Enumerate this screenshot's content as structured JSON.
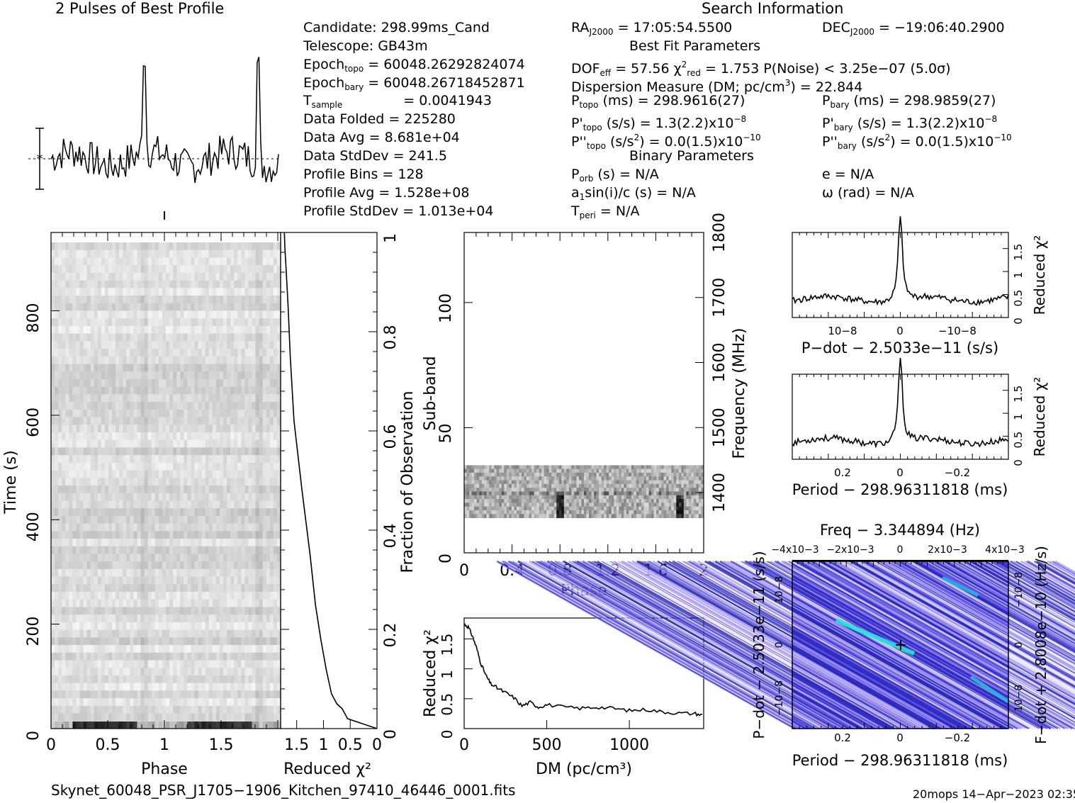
{
  "header": {
    "profile_title": "2 Pulses of Best Profile",
    "search_title": "Search Information",
    "best_fit_title": "Best Fit Parameters",
    "binary_title": "Binary Parameters"
  },
  "info": {
    "candidate": "Candidate:  298.99ms_Cand",
    "telescope": "Telescope:  GB43m",
    "epoch_topo_label": "Epoch",
    "epoch_topo_sub": "topo",
    "epoch_topo_val": "= 60048.26292824074",
    "epoch_bary_label": "Epoch",
    "epoch_bary_sub": "bary",
    "epoch_bary_val": "= 60048.26718452871",
    "tsample_label": "T",
    "tsample_sub": "sample",
    "tsample_val": "=   0.0041943",
    "data_folded": "Data Folded      =   225280",
    "data_avg": "Data Avg          =   8.681e+04",
    "data_stddev": "Data StdDev     =   241.5",
    "profile_bins": "Profile Bins     =   128",
    "profile_avg": "Profile Avg      =   1.528e+08",
    "profile_stddev": "Profile StdDev  =   1.013e+04"
  },
  "search": {
    "ra_label": "RA",
    "ra_sub": "J2000",
    "ra_val": "= 17:05:54.5500",
    "dec_label": "DEC",
    "dec_sub": "J2000",
    "dec_val": "= −19:06:40.2900",
    "dof_label": "DOF",
    "dof_sub": "eff",
    "dof_val": "= 57.56  χ",
    "chi_sup": "2",
    "chi_sub": "red",
    "chi_val": "= 1.753  P(Noise) < 3.25e−07   (5.0σ)",
    "dm_line_a": "Dispersion Measure (DM; pc/cm",
    "dm_sup": "3",
    "dm_line_b": ") = 22.844",
    "ptopo_label": "P",
    "ptopo_sub": "topo",
    "ptopo_val": " (ms)  =   298.9616(27)",
    "pbary_label": "P",
    "pbary_sub": "bary",
    "pbary_val": " (ms)  =   298.9859(27)",
    "pdtopo_label": "P'",
    "pdtopo_sub": "topo",
    "pdtopo_val": " (s/s)  =   1.3(2.2)x10",
    "pdtopo_exp": "−8",
    "pdbary_label": "P'",
    "pdbary_sub": "bary",
    "pdbary_val": " (s/s)  =   1.3(2.2)x10",
    "pdbary_exp": "−8",
    "pddtopo_label": "P''",
    "pddtopo_sub": "topo",
    "pddtopo_val": " (s/s",
    "pddtopo_sup": "2",
    "pddtopo_val2": ") = 0.0(1.5)x10",
    "pddtopo_exp": "−10",
    "pddbary_label": "P''",
    "pddbary_sub": "bary",
    "pddbary_val": " (s/s",
    "pddbary_sup": "2",
    "pddbary_val2": ") = 0.0(1.5)x10",
    "pddbary_exp": "−10",
    "porb_label": "P",
    "porb_sub": "orb",
    "porb_val": " (s) = N/A",
    "e_val": "e = N/A",
    "a1_label": "a",
    "a1_sub": "1",
    "a1_val": "sin(i)/c (s) = N/A",
    "omega_val": "ω (rad) = N/A",
    "tperi_label": "T",
    "tperi_sub": "peri",
    "tperi_val": " = N/A"
  },
  "footer": {
    "filename": "Skynet_60048_PSR_J1705−1906_Kitchen_97410_46446_0001.fits",
    "stamp": "20mops 14−Apr−2023 02:35"
  },
  "chart_data": [
    {
      "type": "line",
      "title": "2 Pulses of Best Profile",
      "xlabel": "",
      "ylabel": "",
      "xlim": [
        0,
        2
      ],
      "peaks_at_phase": [
        0.82,
        1.82
      ],
      "pulse_peak_relative": 1.0,
      "baseline_relative": 0.0
    },
    {
      "type": "heatmap",
      "xlabel": "Phase",
      "ylabel": "Time (s)",
      "xlim": [
        0,
        2
      ],
      "ylim": [
        0,
        950
      ],
      "x_ticks": [
        "0",
        "0.5",
        "1",
        "1.5"
      ],
      "y_ticks": [
        "0",
        "200",
        "400",
        "600",
        "800"
      ]
    },
    {
      "type": "line",
      "xlabel": "Reduced χ²",
      "ylabel": "Fraction of Observation",
      "xlim": [
        1.8,
        0
      ],
      "ylim": [
        0,
        1
      ],
      "x_ticks": [
        "1.5",
        "1",
        "0.5",
        "0"
      ],
      "y_ticks": [
        "0",
        "0.2",
        "0.4",
        "0.6",
        "0.8",
        "1"
      ],
      "x": [
        0.0,
        0.55,
        0.65,
        0.75,
        0.85,
        0.95,
        1.05,
        1.15,
        1.25,
        1.4,
        1.55,
        1.62,
        1.66,
        1.7,
        1.72,
        1.73
      ],
      "y": [
        0.0,
        0.02,
        0.04,
        0.05,
        0.07,
        0.12,
        0.18,
        0.25,
        0.35,
        0.48,
        0.62,
        0.75,
        0.85,
        0.93,
        0.97,
        1.0
      ]
    },
    {
      "type": "heatmap",
      "xlabel": "Phase",
      "ylabel": "Sub-band",
      "y2label": "Frequency (MHz)",
      "xlim": [
        0,
        2
      ],
      "ylim": [
        0,
        128
      ],
      "x_ticks": [
        "0",
        "0.4",
        "0.8",
        "1.2",
        "1.6",
        "2"
      ],
      "y_ticks": [
        "0",
        "50",
        "100"
      ],
      "y2_ticks": [
        "1400",
        "1500",
        "1600",
        "1700",
        "1800"
      ],
      "data_band": [
        14,
        35
      ],
      "pulse_phase": [
        0.8,
        1.8
      ]
    },
    {
      "type": "line",
      "xlabel": "DM (pc/cm³)",
      "ylabel": "Reduced χ²",
      "xlim": [
        0,
        1450
      ],
      "ylim": [
        0,
        1.85
      ],
      "x_ticks": [
        "0",
        "500",
        "1000"
      ],
      "y_ticks": [
        "0",
        "0.5",
        "1",
        "1.5"
      ],
      "x": [
        0,
        25,
        50,
        75,
        100,
        130,
        160,
        200,
        250,
        300,
        350,
        400,
        450,
        500,
        600,
        700,
        800,
        900,
        1000,
        1100,
        1200,
        1300,
        1400,
        1450
      ],
      "y": [
        1.75,
        1.7,
        1.55,
        1.35,
        1.1,
        0.9,
        0.75,
        0.68,
        0.6,
        0.52,
        0.38,
        0.44,
        0.36,
        0.4,
        0.36,
        0.34,
        0.36,
        0.34,
        0.3,
        0.32,
        0.28,
        0.26,
        0.25,
        0.22
      ]
    },
    {
      "type": "line",
      "xlabel": "P−dot − 2.5033e−11 (s/s)",
      "ylabel": "Reduced χ²",
      "xlim": [
        1.4e-08,
        -1.4e-08
      ],
      "ylim": [
        0,
        1.85
      ],
      "x_ticks": [
        "10−8",
        "0",
        "−10−8"
      ],
      "y_ticks": [
        "0",
        "0.5",
        "1",
        "1.5"
      ],
      "peak_x": 0,
      "peak_y": 1.75,
      "baseline_y": 0.4
    },
    {
      "type": "line",
      "xlabel": "Period − 298.96311818 (ms)",
      "ylabel": "Reduced χ²",
      "xlim": [
        0.38,
        -0.38
      ],
      "ylim": [
        0,
        1.85
      ],
      "x_ticks": [
        "0.2",
        "0",
        "−0.2"
      ],
      "y_ticks": [
        "0",
        "0.5",
        "1",
        "1.5"
      ],
      "peak_x": 0,
      "peak_y": 1.75,
      "baseline_y": 0.4
    },
    {
      "type": "heatmap",
      "title": "Freq − 3.344894 (Hz)",
      "xlabel": "Period − 298.96311818 (ms)",
      "ylabel": "P−dot − 2.5033e−11 (s/s)",
      "y2label": "F−dot + 2.8008e−10 (Hz/s)",
      "x_ticks": [
        "0.2",
        "0",
        "−0.2"
      ],
      "top_ticks": [
        "−4x10−3",
        "−2x10−3",
        "0",
        "2x10−3",
        "4x10−3"
      ],
      "y_ticks": [
        "10−8",
        "0",
        "−10−8"
      ],
      "y2_ticks": [
        "−10−8",
        "0",
        "10−8"
      ],
      "best_fit_marker": [
        0,
        0
      ]
    }
  ]
}
